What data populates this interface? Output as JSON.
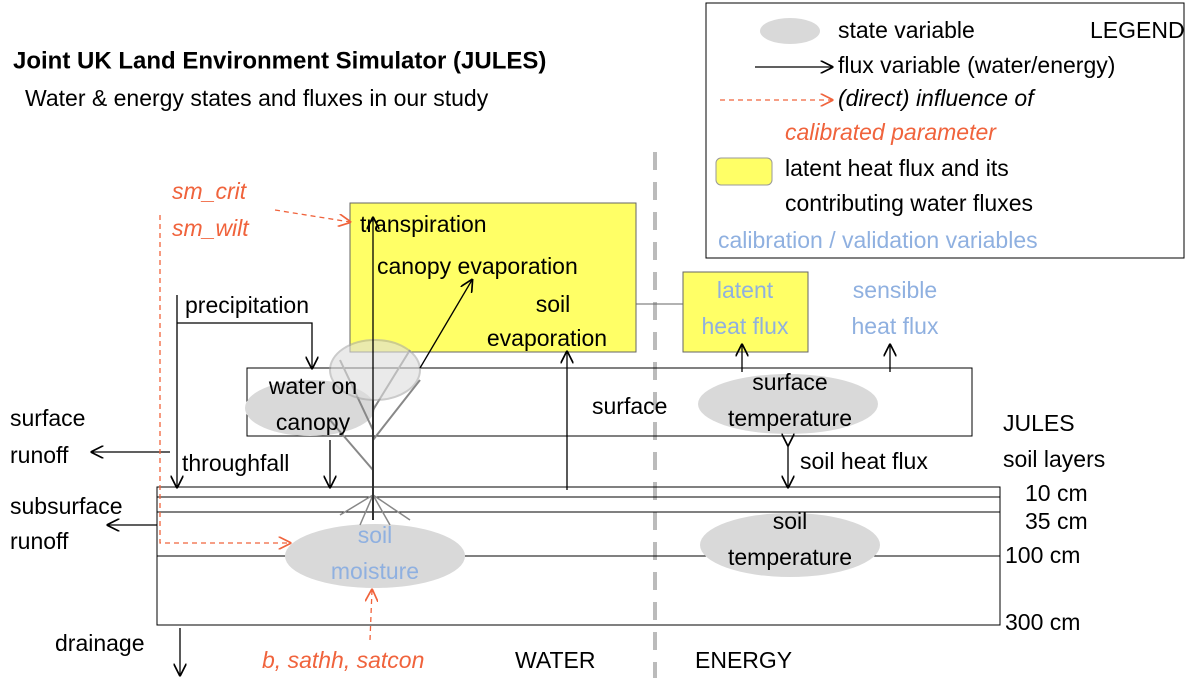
{
  "title": "Joint UK Land Environment Simulator (JULES)",
  "subtitle": "Water & energy states and fluxes in our study",
  "legend": {
    "heading": "LEGEND",
    "state": "state variable",
    "flux": "flux variable (water/energy)",
    "influence": [
      "(direct) influence of",
      "calibrated parameter"
    ],
    "latent": [
      "latent heat flux and its",
      "contributing water fluxes"
    ],
    "calibration": "calibration / validation variables"
  },
  "parameters": {
    "vegetation": [
      "sm_crit",
      "sm_wilt"
    ],
    "soil": "b, sathh, satcon"
  },
  "fluxes": {
    "transpiration": "transpiration",
    "canopy_evaporation": "canopy evaporation",
    "soil_evaporation": [
      "soil",
      "evaporation"
    ],
    "latent_heat": [
      "latent",
      "heat flux"
    ],
    "sensible_heat": [
      "sensible",
      "heat flux"
    ],
    "precipitation": "precipitation",
    "throughfall": "throughfall",
    "surface_runoff": [
      "surface",
      "runoff"
    ],
    "subsurface_runoff": [
      "subsurface",
      "runoff"
    ],
    "soil_heat": "soil heat flux",
    "drainage": "drainage"
  },
  "states": {
    "canopy_water": [
      "water on",
      "canopy"
    ],
    "surface_temperature": [
      "surface",
      "temperature"
    ],
    "soil_moisture": [
      "soil",
      "moisture"
    ],
    "soil_temperature": [
      "soil",
      "temperature"
    ]
  },
  "surface_label": "surface",
  "soil_layers": {
    "label": [
      "JULES",
      "soil layers"
    ],
    "depths": [
      "10 cm",
      "35 cm",
      "100 cm",
      "300 cm"
    ]
  },
  "sections": {
    "water": "WATER",
    "energy": "ENERGY"
  }
}
